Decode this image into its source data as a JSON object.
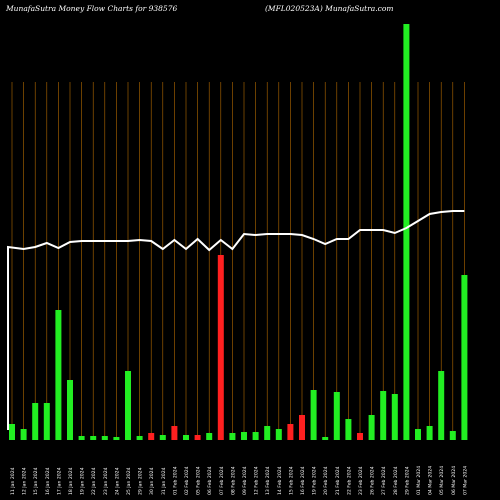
{
  "header": {
    "left": "MunafaSutra  Money Flow  Charts for 938576",
    "right": "(MFL020523A) MunafaSutra.com"
  },
  "chart_data": {
    "type": "bar",
    "title": "MunafaSutra  Money Flow  Charts for 938576",
    "subtitle": "(MFL020523A) MunafaSutra.com",
    "grid": true,
    "colors": {
      "up": "#22ee22",
      "down": "#ff2020",
      "line": "#ffffff",
      "grid": "#b36a00",
      "background": "#000000"
    },
    "categories": [
      "11 Jan 2024",
      "12 Jan 2024",
      "15 Jan 2024",
      "16 Jan 2024",
      "17 Jan 2024",
      "18 Jan 2024",
      "19 Jan 2024",
      "22 Jan 2024",
      "23 Jan 2024",
      "24 Jan 2024",
      "25 Jan 2024",
      "29 Jan 2024",
      "30 Jan 2024",
      "31 Jan 2024",
      "01 Feb 2024",
      "02 Feb 2024",
      "05 Feb 2024",
      "06 Feb 2024",
      "07 Feb 2024",
      "08 Feb 2024",
      "09 Feb 2024",
      "12 Feb 2024",
      "13 Feb 2024",
      "14 Feb 2024",
      "15 Feb 2024",
      "16 Feb 2024",
      "19 Feb 2024",
      "20 Feb 2024",
      "21 Feb 2024",
      "22 Feb 2024",
      "23 Feb 2024",
      "26 Feb 2024",
      "27 Feb 2024",
      "28 Feb 2024",
      "29 Feb 2024",
      "01 Mar 2024",
      "04 Mar 2024",
      "05 Mar 2024",
      "06 Mar 2024",
      "07 Mar 2024"
    ],
    "series": [
      {
        "values": [
          16,
          11,
          37,
          37,
          130,
          60,
          4,
          4,
          4,
          3,
          69,
          4,
          7,
          5,
          14,
          5,
          5,
          7,
          185,
          7,
          8,
          8,
          14,
          11,
          16,
          25,
          50,
          3,
          48,
          21,
          7,
          25,
          49,
          46,
          416,
          11,
          14,
          69,
          9,
          165
        ],
        "direction": [
          "up",
          "up",
          "up",
          "up",
          "up",
          "up",
          "up",
          "up",
          "up",
          "up",
          "up",
          "up",
          "down",
          "up",
          "down",
          "up",
          "down",
          "up",
          "down",
          "up",
          "up",
          "up",
          "up",
          "up",
          "down",
          "down",
          "up",
          "up",
          "up",
          "up",
          "down",
          "up",
          "up",
          "up",
          "up",
          "up",
          "up",
          "up",
          "up",
          "up"
        ]
      },
      {
        "type": "line",
        "values": [
          193,
          191,
          193,
          197,
          192,
          198,
          199,
          199,
          199,
          199,
          199,
          200,
          199,
          191,
          200,
          191,
          201,
          190,
          200,
          191,
          206,
          205,
          206,
          206,
          206,
          205,
          201,
          196,
          201,
          201,
          210,
          210,
          210,
          207,
          212,
          219,
          226,
          228,
          229,
          229
        ]
      }
    ]
  }
}
